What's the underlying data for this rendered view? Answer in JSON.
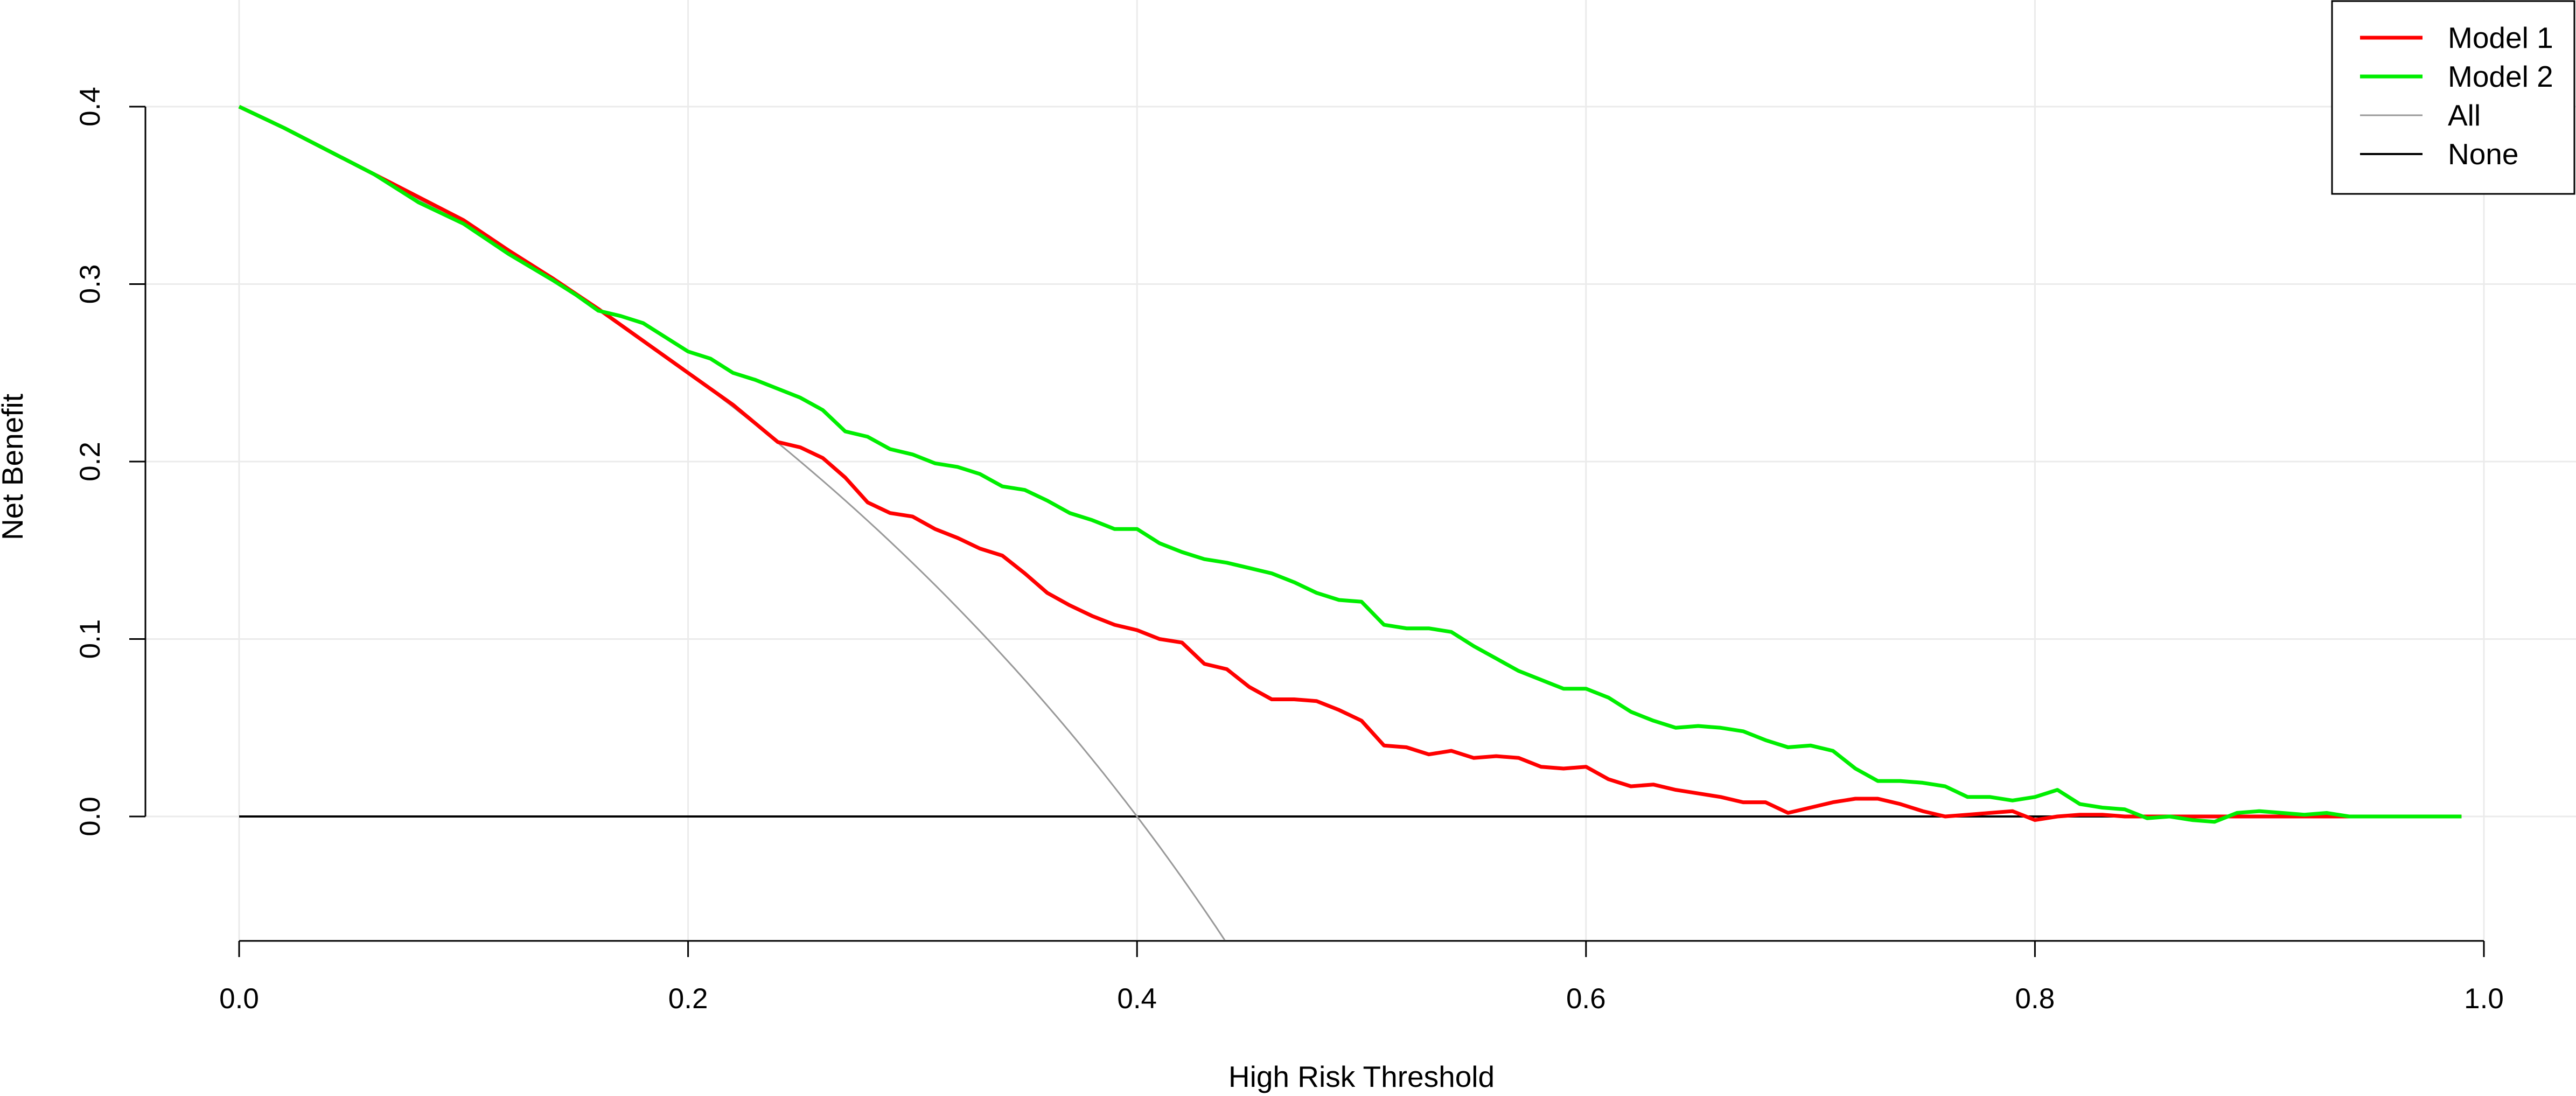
{
  "chart_data": {
    "type": "line",
    "title": "",
    "xlabel": "High Risk Threshold",
    "ylabel": "Net Benefit",
    "xlim": [
      0.0,
      1.0
    ],
    "ylim": [
      -0.07,
      0.4
    ],
    "x_ticks": [
      "0.0",
      "0.2",
      "0.4",
      "0.6",
      "0.8",
      "1.0"
    ],
    "y_ticks": [
      "0.0",
      "0.1",
      "0.2",
      "0.3",
      "0.4"
    ],
    "grid": true,
    "legend_position": "top-right",
    "legend": [
      {
        "label": "Model 1",
        "color": "#ff0000"
      },
      {
        "label": "Model 2",
        "color": "#00ee00"
      },
      {
        "label": "All",
        "color": "#999999"
      },
      {
        "label": "None",
        "color": "#000000"
      }
    ],
    "series": [
      {
        "name": "Model 1",
        "color": "#ff0000",
        "points": [
          [
            0.0,
            0.4
          ],
          [
            0.02,
            0.388
          ],
          [
            0.04,
            0.375
          ],
          [
            0.06,
            0.362
          ],
          [
            0.08,
            0.349
          ],
          [
            0.1,
            0.336
          ],
          [
            0.12,
            0.319
          ],
          [
            0.14,
            0.303
          ],
          [
            0.16,
            0.286
          ],
          [
            0.18,
            0.268
          ],
          [
            0.2,
            0.25
          ],
          [
            0.22,
            0.232
          ],
          [
            0.24,
            0.211
          ],
          [
            0.25,
            0.208
          ],
          [
            0.26,
            0.202
          ],
          [
            0.27,
            0.191
          ],
          [
            0.28,
            0.177
          ],
          [
            0.29,
            0.171
          ],
          [
            0.3,
            0.169
          ],
          [
            0.31,
            0.162
          ],
          [
            0.32,
            0.157
          ],
          [
            0.33,
            0.151
          ],
          [
            0.34,
            0.147
          ],
          [
            0.35,
            0.137
          ],
          [
            0.36,
            0.126
          ],
          [
            0.37,
            0.119
          ],
          [
            0.38,
            0.113
          ],
          [
            0.39,
            0.108
          ],
          [
            0.4,
            0.105
          ],
          [
            0.41,
            0.1
          ],
          [
            0.42,
            0.098
          ],
          [
            0.43,
            0.086
          ],
          [
            0.44,
            0.083
          ],
          [
            0.45,
            0.073
          ],
          [
            0.46,
            0.066
          ],
          [
            0.47,
            0.066
          ],
          [
            0.48,
            0.065
          ],
          [
            0.49,
            0.06
          ],
          [
            0.5,
            0.054
          ],
          [
            0.51,
            0.04
          ],
          [
            0.52,
            0.039
          ],
          [
            0.53,
            0.035
          ],
          [
            0.54,
            0.037
          ],
          [
            0.55,
            0.033
          ],
          [
            0.56,
            0.034
          ],
          [
            0.57,
            0.033
          ],
          [
            0.58,
            0.028
          ],
          [
            0.59,
            0.027
          ],
          [
            0.6,
            0.028
          ],
          [
            0.61,
            0.021
          ],
          [
            0.62,
            0.017
          ],
          [
            0.63,
            0.018
          ],
          [
            0.64,
            0.015
          ],
          [
            0.65,
            0.013
          ],
          [
            0.66,
            0.011
          ],
          [
            0.67,
            0.008
          ],
          [
            0.68,
            0.008
          ],
          [
            0.69,
            0.002
          ],
          [
            0.7,
            0.005
          ],
          [
            0.71,
            0.008
          ],
          [
            0.72,
            0.01
          ],
          [
            0.73,
            0.01
          ],
          [
            0.74,
            0.007
          ],
          [
            0.75,
            0.003
          ],
          [
            0.76,
            0.0
          ],
          [
            0.77,
            0.001
          ],
          [
            0.78,
            0.002
          ],
          [
            0.79,
            0.003
          ],
          [
            0.8,
            -0.002
          ],
          [
            0.81,
            0.0
          ],
          [
            0.82,
            0.001
          ],
          [
            0.83,
            0.001
          ],
          [
            0.84,
            0.0
          ],
          [
            0.85,
            0.0
          ],
          [
            0.86,
            0.0
          ],
          [
            0.87,
            0.0
          ],
          [
            0.88,
            0.0
          ],
          [
            0.9,
            0.0
          ],
          [
            0.92,
            0.0
          ],
          [
            0.94,
            0.0
          ],
          [
            0.96,
            0.0
          ],
          [
            0.99,
            0.0
          ]
        ]
      },
      {
        "name": "Model 2",
        "color": "#00ee00",
        "points": [
          [
            0.0,
            0.4
          ],
          [
            0.02,
            0.388
          ],
          [
            0.04,
            0.375
          ],
          [
            0.06,
            0.362
          ],
          [
            0.08,
            0.346
          ],
          [
            0.1,
            0.334
          ],
          [
            0.12,
            0.317
          ],
          [
            0.14,
            0.302
          ],
          [
            0.15,
            0.294
          ],
          [
            0.16,
            0.285
          ],
          [
            0.17,
            0.282
          ],
          [
            0.18,
            0.278
          ],
          [
            0.19,
            0.27
          ],
          [
            0.2,
            0.262
          ],
          [
            0.21,
            0.258
          ],
          [
            0.22,
            0.25
          ],
          [
            0.23,
            0.246
          ],
          [
            0.24,
            0.241
          ],
          [
            0.25,
            0.236
          ],
          [
            0.26,
            0.229
          ],
          [
            0.27,
            0.217
          ],
          [
            0.28,
            0.214
          ],
          [
            0.29,
            0.207
          ],
          [
            0.3,
            0.204
          ],
          [
            0.31,
            0.199
          ],
          [
            0.32,
            0.197
          ],
          [
            0.33,
            0.193
          ],
          [
            0.34,
            0.186
          ],
          [
            0.35,
            0.184
          ],
          [
            0.36,
            0.178
          ],
          [
            0.37,
            0.171
          ],
          [
            0.38,
            0.167
          ],
          [
            0.39,
            0.162
          ],
          [
            0.4,
            0.162
          ],
          [
            0.41,
            0.154
          ],
          [
            0.42,
            0.149
          ],
          [
            0.43,
            0.145
          ],
          [
            0.44,
            0.143
          ],
          [
            0.45,
            0.14
          ],
          [
            0.46,
            0.137
          ],
          [
            0.47,
            0.132
          ],
          [
            0.48,
            0.126
          ],
          [
            0.49,
            0.122
          ],
          [
            0.5,
            0.121
          ],
          [
            0.51,
            0.108
          ],
          [
            0.52,
            0.106
          ],
          [
            0.53,
            0.106
          ],
          [
            0.54,
            0.104
          ],
          [
            0.55,
            0.096
          ],
          [
            0.56,
            0.089
          ],
          [
            0.57,
            0.082
          ],
          [
            0.58,
            0.077
          ],
          [
            0.59,
            0.072
          ],
          [
            0.6,
            0.072
          ],
          [
            0.61,
            0.067
          ],
          [
            0.62,
            0.059
          ],
          [
            0.63,
            0.054
          ],
          [
            0.64,
            0.05
          ],
          [
            0.65,
            0.051
          ],
          [
            0.66,
            0.05
          ],
          [
            0.67,
            0.048
          ],
          [
            0.68,
            0.043
          ],
          [
            0.69,
            0.039
          ],
          [
            0.7,
            0.04
          ],
          [
            0.71,
            0.037
          ],
          [
            0.72,
            0.027
          ],
          [
            0.73,
            0.02
          ],
          [
            0.74,
            0.02
          ],
          [
            0.75,
            0.019
          ],
          [
            0.76,
            0.017
          ],
          [
            0.77,
            0.011
          ],
          [
            0.78,
            0.011
          ],
          [
            0.79,
            0.009
          ],
          [
            0.8,
            0.011
          ],
          [
            0.81,
            0.015
          ],
          [
            0.82,
            0.007
          ],
          [
            0.83,
            0.005
          ],
          [
            0.84,
            0.004
          ],
          [
            0.85,
            -0.001
          ],
          [
            0.86,
            0.0
          ],
          [
            0.87,
            -0.002
          ],
          [
            0.88,
            -0.003
          ],
          [
            0.89,
            0.002
          ],
          [
            0.9,
            0.003
          ],
          [
            0.91,
            0.002
          ],
          [
            0.92,
            0.001
          ],
          [
            0.93,
            0.002
          ],
          [
            0.94,
            0.0
          ],
          [
            0.96,
            0.0
          ],
          [
            0.99,
            0.0
          ]
        ]
      },
      {
        "name": "All",
        "color": "#999999",
        "prevalence": 0.4,
        "x_range": [
          0.0,
          0.44
        ]
      },
      {
        "name": "None",
        "color": "#000000",
        "points": [
          [
            0.0,
            0.0
          ],
          [
            0.99,
            0.0
          ]
        ]
      }
    ]
  }
}
